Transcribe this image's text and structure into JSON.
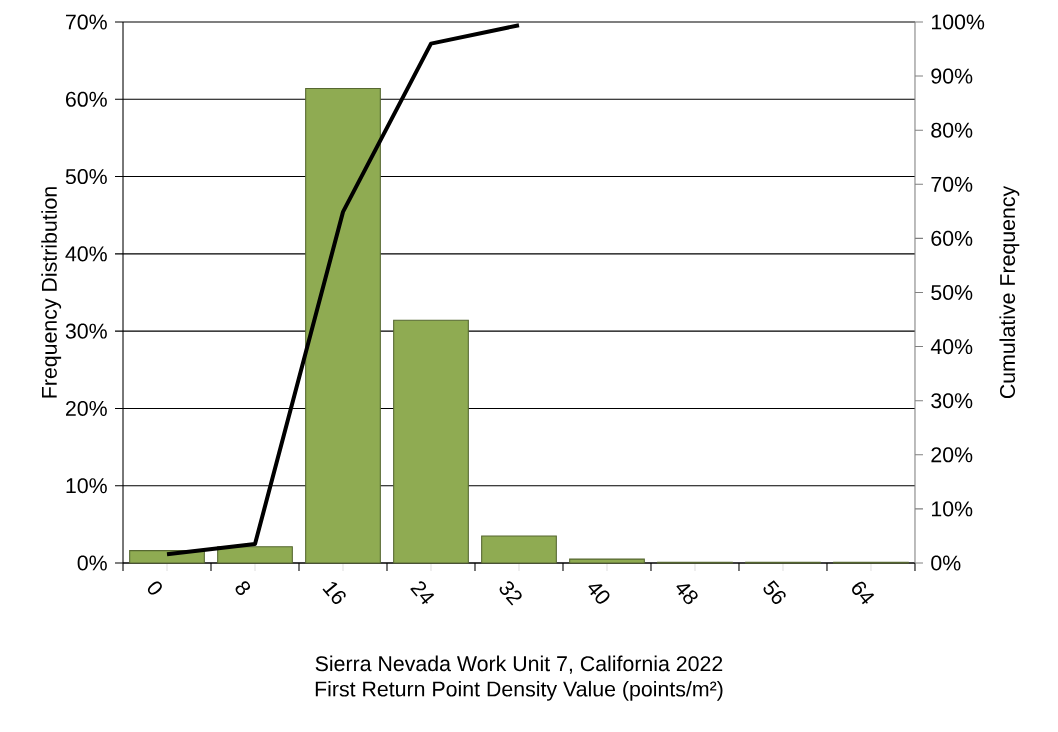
{
  "chart_data": {
    "type": "bar",
    "categories": [
      "0",
      "8",
      "16",
      "24",
      "32",
      "40",
      "48",
      "56",
      "64"
    ],
    "series": [
      {
        "color": "#8fab52",
        "values": [
          1.6,
          2.1,
          61.4,
          31.4,
          3.5,
          0.5,
          0.1,
          0.1,
          0.1
        ]
      },
      {
        "type": "line",
        "axis": "y2",
        "color": "#000000",
        "values": [
          1.6,
          3.5,
          64.9,
          96.0,
          99.4,
          null,
          null,
          null,
          null
        ]
      }
    ],
    "ylabel": "Frequency Distribution",
    "y2label": "Cumulative Frequency",
    "annotations": [
      "Sierra Nevada Work Unit 7, California 2022"
    ],
    "xlabel": "First Return Point Density Value (points/m²)",
    "ylim": [
      0,
      70
    ],
    "yticks": [
      {
        "value": 0,
        "label": "0%"
      },
      {
        "value": 10,
        "label": "10%"
      },
      {
        "value": 20,
        "label": "20%"
      },
      {
        "value": 30,
        "label": "30%"
      },
      {
        "value": 40,
        "label": "40%"
      },
      {
        "value": 50,
        "label": "50%"
      },
      {
        "value": 60,
        "label": "60%"
      },
      {
        "value": 70,
        "label": "70%"
      }
    ],
    "y2lim": [
      0,
      100
    ],
    "y2ticks": [
      {
        "value": 0,
        "label": "0%"
      },
      {
        "value": 10,
        "label": "10%"
      },
      {
        "value": 20,
        "label": "20%"
      },
      {
        "value": 30,
        "label": "30%"
      },
      {
        "value": 40,
        "label": "40%"
      },
      {
        "value": 50,
        "label": "50%"
      },
      {
        "value": 60,
        "label": "60%"
      },
      {
        "value": 70,
        "label": "70%"
      },
      {
        "value": 80,
        "label": "80%"
      },
      {
        "value": 90,
        "label": "90%"
      },
      {
        "value": 100,
        "label": "100%"
      }
    ],
    "grid": "y"
  }
}
